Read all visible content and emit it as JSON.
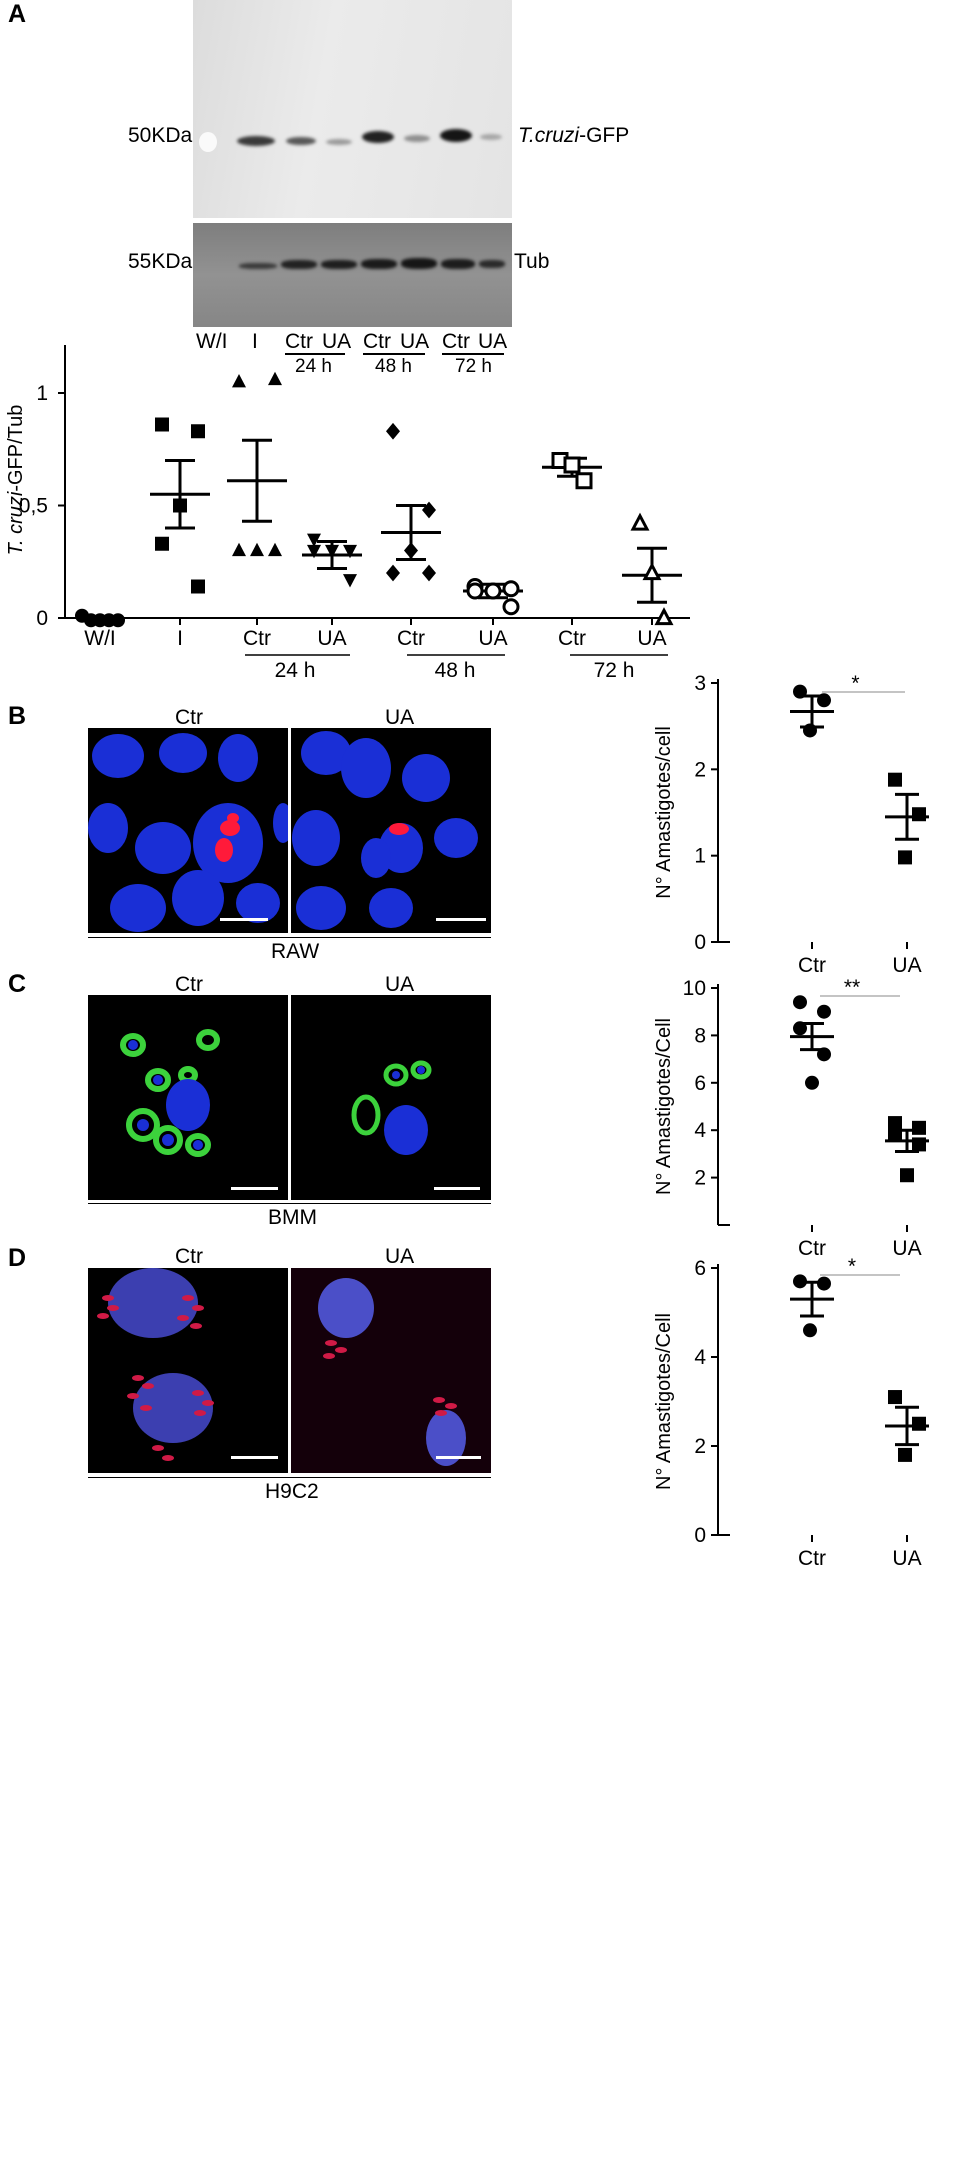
{
  "panels": {
    "a": "A",
    "b": "B",
    "c": "C",
    "d": "D"
  },
  "blot": {
    "marker_top": "50KDa",
    "marker_bottom": "55KDa",
    "band_top": "T.cruzi-GFP",
    "band_top_italic": "T.cruzi",
    "band_top_suffix": "-GFP",
    "band_bottom": "Tub",
    "lanes": [
      "W/I",
      "I",
      "Ctr",
      "UA",
      "Ctr",
      "UA",
      "Ctr",
      "UA"
    ],
    "times": [
      "24 h",
      "48 h",
      "72 h"
    ]
  },
  "micro": {
    "b": {
      "left": "Ctr",
      "right": "UA",
      "caption": "RAW"
    },
    "c": {
      "left": "Ctr",
      "right": "UA",
      "caption": "BMM"
    },
    "d": {
      "left": "Ctr",
      "right": "UA",
      "caption": "H9C2"
    }
  },
  "colors": {
    "nuclei_blue": "#1a2fd6",
    "parasite_red": "#ff1a3a",
    "gfp_green": "#3cd23c",
    "h9c2_nuclei": "#3c3fb0"
  },
  "chart_data": [
    {
      "type": "scatter",
      "panel": "A",
      "ylabel_italic": "T. cruzi",
      "ylabel_suffix": "-GFP/Tub",
      "categories": [
        "W/I",
        "I",
        "Ctr",
        "UA",
        "Ctr",
        "UA",
        "Ctr",
        "UA"
      ],
      "groups": [
        "24 h",
        "48 h",
        "72 h"
      ],
      "yticks": [
        "0",
        "0,5",
        "1"
      ],
      "ylim": [
        -0.02,
        1.2
      ],
      "series": [
        {
          "marker": "circle",
          "points": [
            0.01,
            -0.01,
            -0.01,
            -0.01,
            -0.01
          ],
          "mean": 0,
          "sem": 0
        },
        {
          "marker": "square",
          "points": [
            0.86,
            0.83,
            0.5,
            0.33,
            0.14
          ],
          "mean": 0.55,
          "sem": 0.15
        },
        {
          "marker": "triangle",
          "points": [
            1.05,
            1.06,
            0.3,
            0.3,
            0.3
          ],
          "mean": 0.61,
          "sem": 0.18
        },
        {
          "marker": "triangle-down",
          "points": [
            0.35,
            0.3,
            0.3,
            0.3,
            0.17
          ],
          "mean": 0.28,
          "sem": 0.06
        },
        {
          "marker": "diamond",
          "points": [
            0.83,
            0.48,
            0.3,
            0.2,
            0.2
          ],
          "mean": 0.38,
          "sem": 0.12
        },
        {
          "marker": "circle-open",
          "points": [
            0.14,
            0.13,
            0.12,
            0.12,
            0.05
          ],
          "mean": 0.12,
          "sem": 0.03
        },
        {
          "marker": "square-open",
          "points": [
            0.7,
            0.68,
            0.61
          ],
          "mean": 0.67,
          "sem": 0.04
        },
        {
          "marker": "triangle-open",
          "points": [
            0.42,
            0.2,
            0.0
          ],
          "mean": 0.19,
          "sem": 0.12
        }
      ]
    },
    {
      "type": "scatter",
      "panel": "B",
      "ylabel": "N° Amastigotes/cell",
      "categories": [
        "Ctr",
        "UA"
      ],
      "yticks": [
        "0",
        "1",
        "2",
        "3"
      ],
      "ylim": [
        0,
        3
      ],
      "significance": "*",
      "series": [
        {
          "marker": "circle",
          "points": [
            2.9,
            2.8,
            2.45
          ],
          "mean": 2.67,
          "sem": 0.18
        },
        {
          "marker": "square",
          "points": [
            1.88,
            1.48,
            0.98
          ],
          "mean": 1.45,
          "sem": 0.26
        }
      ]
    },
    {
      "type": "scatter",
      "panel": "C",
      "ylabel": "N° Amastigotes/Cell",
      "categories": [
        "Ctr",
        "UA"
      ],
      "yticks": [
        "2",
        "4",
        "6",
        "8",
        "10"
      ],
      "ylim": [
        0,
        10
      ],
      "significance": "**",
      "series": [
        {
          "marker": "circle",
          "points": [
            9.4,
            9.0,
            8.3,
            7.2,
            6.0
          ],
          "mean": 7.95,
          "sem": 0.55
        },
        {
          "marker": "square",
          "points": [
            4.3,
            4.1,
            3.9,
            3.4,
            2.1
          ],
          "mean": 3.55,
          "sem": 0.45
        }
      ]
    },
    {
      "type": "scatter",
      "panel": "D",
      "ylabel": "N° Amastigotes/Cell",
      "categories": [
        "Ctr",
        "UA"
      ],
      "yticks": [
        "0",
        "2",
        "4",
        "6"
      ],
      "ylim": [
        0,
        6
      ],
      "significance": "*",
      "series": [
        {
          "marker": "circle",
          "points": [
            5.7,
            5.65,
            4.6
          ],
          "mean": 5.3,
          "sem": 0.38
        },
        {
          "marker": "square",
          "points": [
            3.1,
            2.5,
            1.8
          ],
          "mean": 2.45,
          "sem": 0.42
        }
      ]
    }
  ]
}
